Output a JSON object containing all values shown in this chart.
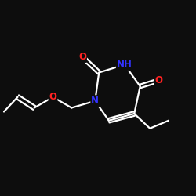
{
  "background_color": "#0d0d0d",
  "bond_color": "#ffffff",
  "atom_colors": {
    "N": "#3333ff",
    "O": "#ff2222",
    "C": "#ffffff",
    "H": "#ffffff"
  },
  "bond_width": 1.6,
  "figsize": [
    2.5,
    2.5
  ],
  "dpi": 100,
  "font_size": 8.5
}
